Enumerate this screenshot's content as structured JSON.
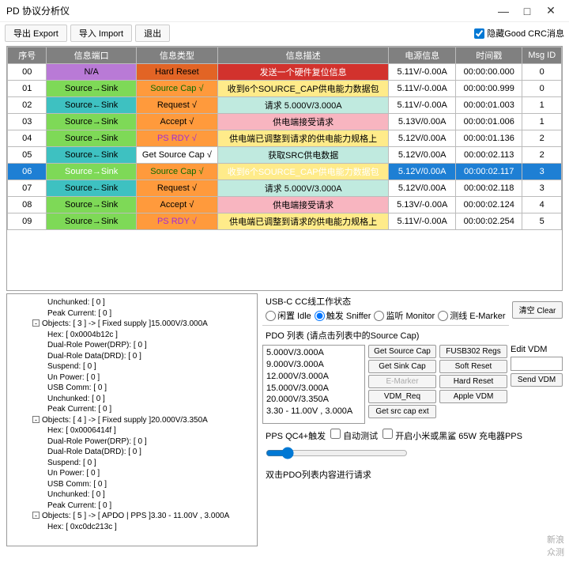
{
  "window": {
    "title": "PD 协议分析仪"
  },
  "toolbar": {
    "export": "导出 Export",
    "import": "导入 Import",
    "exit": "退出",
    "hide_crc": "隐藏Good CRC消息",
    "hide_crc_checked": true
  },
  "columns": {
    "seq": "序号",
    "port": "信息端口",
    "type": "信息类型",
    "desc": "信息描述",
    "power": "电源信息",
    "time": "时间戳",
    "msgid": "Msg ID"
  },
  "rows": [
    {
      "seq": "00",
      "port": "N/A",
      "type": "Hard Reset",
      "desc": "发送一个硬件复位信息",
      "power": "5.11V/-0.00A",
      "time": "00:00:00.000",
      "msgid": "0",
      "port_bg": "#b97ad6",
      "type_bg": "#e26425",
      "type_fg": "#000",
      "desc_bg": "#d2322d",
      "desc_fg": "#fff"
    },
    {
      "seq": "01",
      "port": "Source→Sink",
      "type": "Source Cap √",
      "desc": "收到6个SOURCE_CAP供电能力数据包",
      "power": "5.11V/-0.00A",
      "time": "00:00:00.999",
      "msgid": "0",
      "port_bg": "#7ed957",
      "type_bg": "#ff9a3c",
      "type_fg": "#0a6b00",
      "desc_bg": "#ffeb8a"
    },
    {
      "seq": "02",
      "port": "Source←Sink",
      "type": "Request √",
      "desc": "请求 5.000V/3.000A",
      "power": "5.11V/-0.00A",
      "time": "00:00:01.003",
      "msgid": "1",
      "port_bg": "#3ec1c1",
      "type_bg": "#ff9a3c",
      "desc_bg": "#c0eadf"
    },
    {
      "seq": "03",
      "port": "Source→Sink",
      "type": "Accept √",
      "desc": "供电端接受请求",
      "power": "5.13V/0.00A",
      "time": "00:00:01.006",
      "msgid": "1",
      "port_bg": "#7ed957",
      "type_bg": "#ff9a3c",
      "desc_bg": "#f8b5c0"
    },
    {
      "seq": "04",
      "port": "Source→Sink",
      "type": "PS RDY √",
      "desc": "供电端已调整到请求的供电能力规格上",
      "power": "5.12V/0.00A",
      "time": "00:00:01.136",
      "msgid": "2",
      "port_bg": "#7ed957",
      "type_bg": "#ff9a3c",
      "type_fg": "#a02bd6",
      "desc_bg": "#ffeb8a"
    },
    {
      "seq": "05",
      "port": "Source←Sink",
      "type": "Get Source Cap √",
      "desc": "获取SRC供电数据",
      "power": "5.12V/0.00A",
      "time": "00:00:02.113",
      "msgid": "2",
      "port_bg": "#3ec1c1",
      "type_bg": "#fefefe",
      "desc_bg": "#c0eadf"
    },
    {
      "seq": "06",
      "port": "Source→Sink",
      "type": "Source Cap √",
      "desc": "收到6个SOURCE_CAP供电能力数据包",
      "power": "5.12V/0.00A",
      "time": "00:00:02.117",
      "msgid": "3",
      "port_bg": "#7ed957",
      "type_bg": "#ff9a3c",
      "type_fg": "#0a6b00",
      "desc_bg": "#ffeb8a",
      "row_bg": "#1e7fd4",
      "row_fg": "#fff"
    },
    {
      "seq": "07",
      "port": "Source←Sink",
      "type": "Request √",
      "desc": "请求 5.000V/3.000A",
      "power": "5.12V/0.00A",
      "time": "00:00:02.118",
      "msgid": "3",
      "port_bg": "#3ec1c1",
      "type_bg": "#ff9a3c",
      "desc_bg": "#c0eadf"
    },
    {
      "seq": "08",
      "port": "Source→Sink",
      "type": "Accept √",
      "desc": "供电端接受请求",
      "power": "5.13V/-0.00A",
      "time": "00:00:02.124",
      "msgid": "4",
      "port_bg": "#7ed957",
      "type_bg": "#ff9a3c",
      "desc_bg": "#f8b5c0"
    },
    {
      "seq": "09",
      "port": "Source→Sink",
      "type": "PS RDY √",
      "desc": "供电端已调整到请求的供电能力规格上",
      "power": "5.11V/-0.00A",
      "time": "00:00:02.254",
      "msgid": "5",
      "port_bg": "#7ed957",
      "type_bg": "#ff9a3c",
      "type_fg": "#a02bd6",
      "desc_bg": "#ffeb8a"
    }
  ],
  "tree": [
    {
      "t": "Unchunked: [ 0 ]",
      "i": 2
    },
    {
      "t": "Peak Current: [ 0 ]",
      "i": 2
    },
    {
      "t": "Objects: [ 3 ] -> [ Fixed supply ]15.000V/3.000A",
      "i": 1,
      "exp": true
    },
    {
      "t": "Hex: [ 0x0004b12c ]",
      "i": 2
    },
    {
      "t": "Dual-Role Power(DRP): [ 0 ]",
      "i": 2
    },
    {
      "t": "Dual-Role Data(DRD): [ 0 ]",
      "i": 2
    },
    {
      "t": "Suspend: [ 0 ]",
      "i": 2
    },
    {
      "t": "Un Power: [ 0 ]",
      "i": 2
    },
    {
      "t": "USB Comm: [ 0 ]",
      "i": 2
    },
    {
      "t": "Unchunked: [ 0 ]",
      "i": 2
    },
    {
      "t": "Peak Current: [ 0 ]",
      "i": 2
    },
    {
      "t": "Objects: [ 4 ] -> [ Fixed supply ]20.000V/3.350A",
      "i": 1,
      "exp": true
    },
    {
      "t": "Hex: [ 0x0006414f ]",
      "i": 2
    },
    {
      "t": "Dual-Role Power(DRP): [ 0 ]",
      "i": 2
    },
    {
      "t": "Dual-Role Data(DRD): [ 0 ]",
      "i": 2
    },
    {
      "t": "Suspend: [ 0 ]",
      "i": 2
    },
    {
      "t": "Un Power: [ 0 ]",
      "i": 2
    },
    {
      "t": "USB Comm: [ 0 ]",
      "i": 2
    },
    {
      "t": "Unchunked: [ 0 ]",
      "i": 2
    },
    {
      "t": "Peak Current: [ 0 ]",
      "i": 2
    },
    {
      "t": "Objects: [ 5 ] -> [ APDO | PPS ]3.30 - 11.00V , 3.000A",
      "i": 1,
      "exp": true
    },
    {
      "t": "Hex: [ 0xc0dc213c ]",
      "i": 2
    }
  ],
  "cc": {
    "title": "USB-C CC线工作状态",
    "idle": "闲置 Idle",
    "sniffer": "触发 Sniffer",
    "monitor": "监听 Monitor",
    "emarker": "测线 E-Marker",
    "clear": "清空 Clear"
  },
  "pdo": {
    "title": "PDO 列表 (请点击列表中的Source Cap)",
    "items": [
      "5.000V/3.000A",
      "9.000V/3.000A",
      "12.000V/3.000A",
      "15.000V/3.000A",
      "20.000V/3.350A",
      "3.30 - 11.00V , 3.000A"
    ],
    "dbl": "双击PDO列表内容进行请求"
  },
  "btns": {
    "get_source": "Get Source Cap",
    "get_sink": "Get Sink Cap",
    "emarker": "E-Marker",
    "vdm_req": "VDM_Req",
    "get_src_ext": "Get src cap ext",
    "fusb": "FUSB302 Regs",
    "soft_reset": "Soft Reset",
    "hard_reset": "Hard Reset",
    "apple": "Apple VDM"
  },
  "vdm": {
    "title": "Edit VDM",
    "send": "Send VDM"
  },
  "pps": {
    "label": "PPS QC4+触发",
    "auto": "自动测试",
    "xiaomi": "开启小米或黑鲨 65W 充电器PPS"
  },
  "watermark": {
    "l1": "新浪",
    "l2": "众测"
  }
}
